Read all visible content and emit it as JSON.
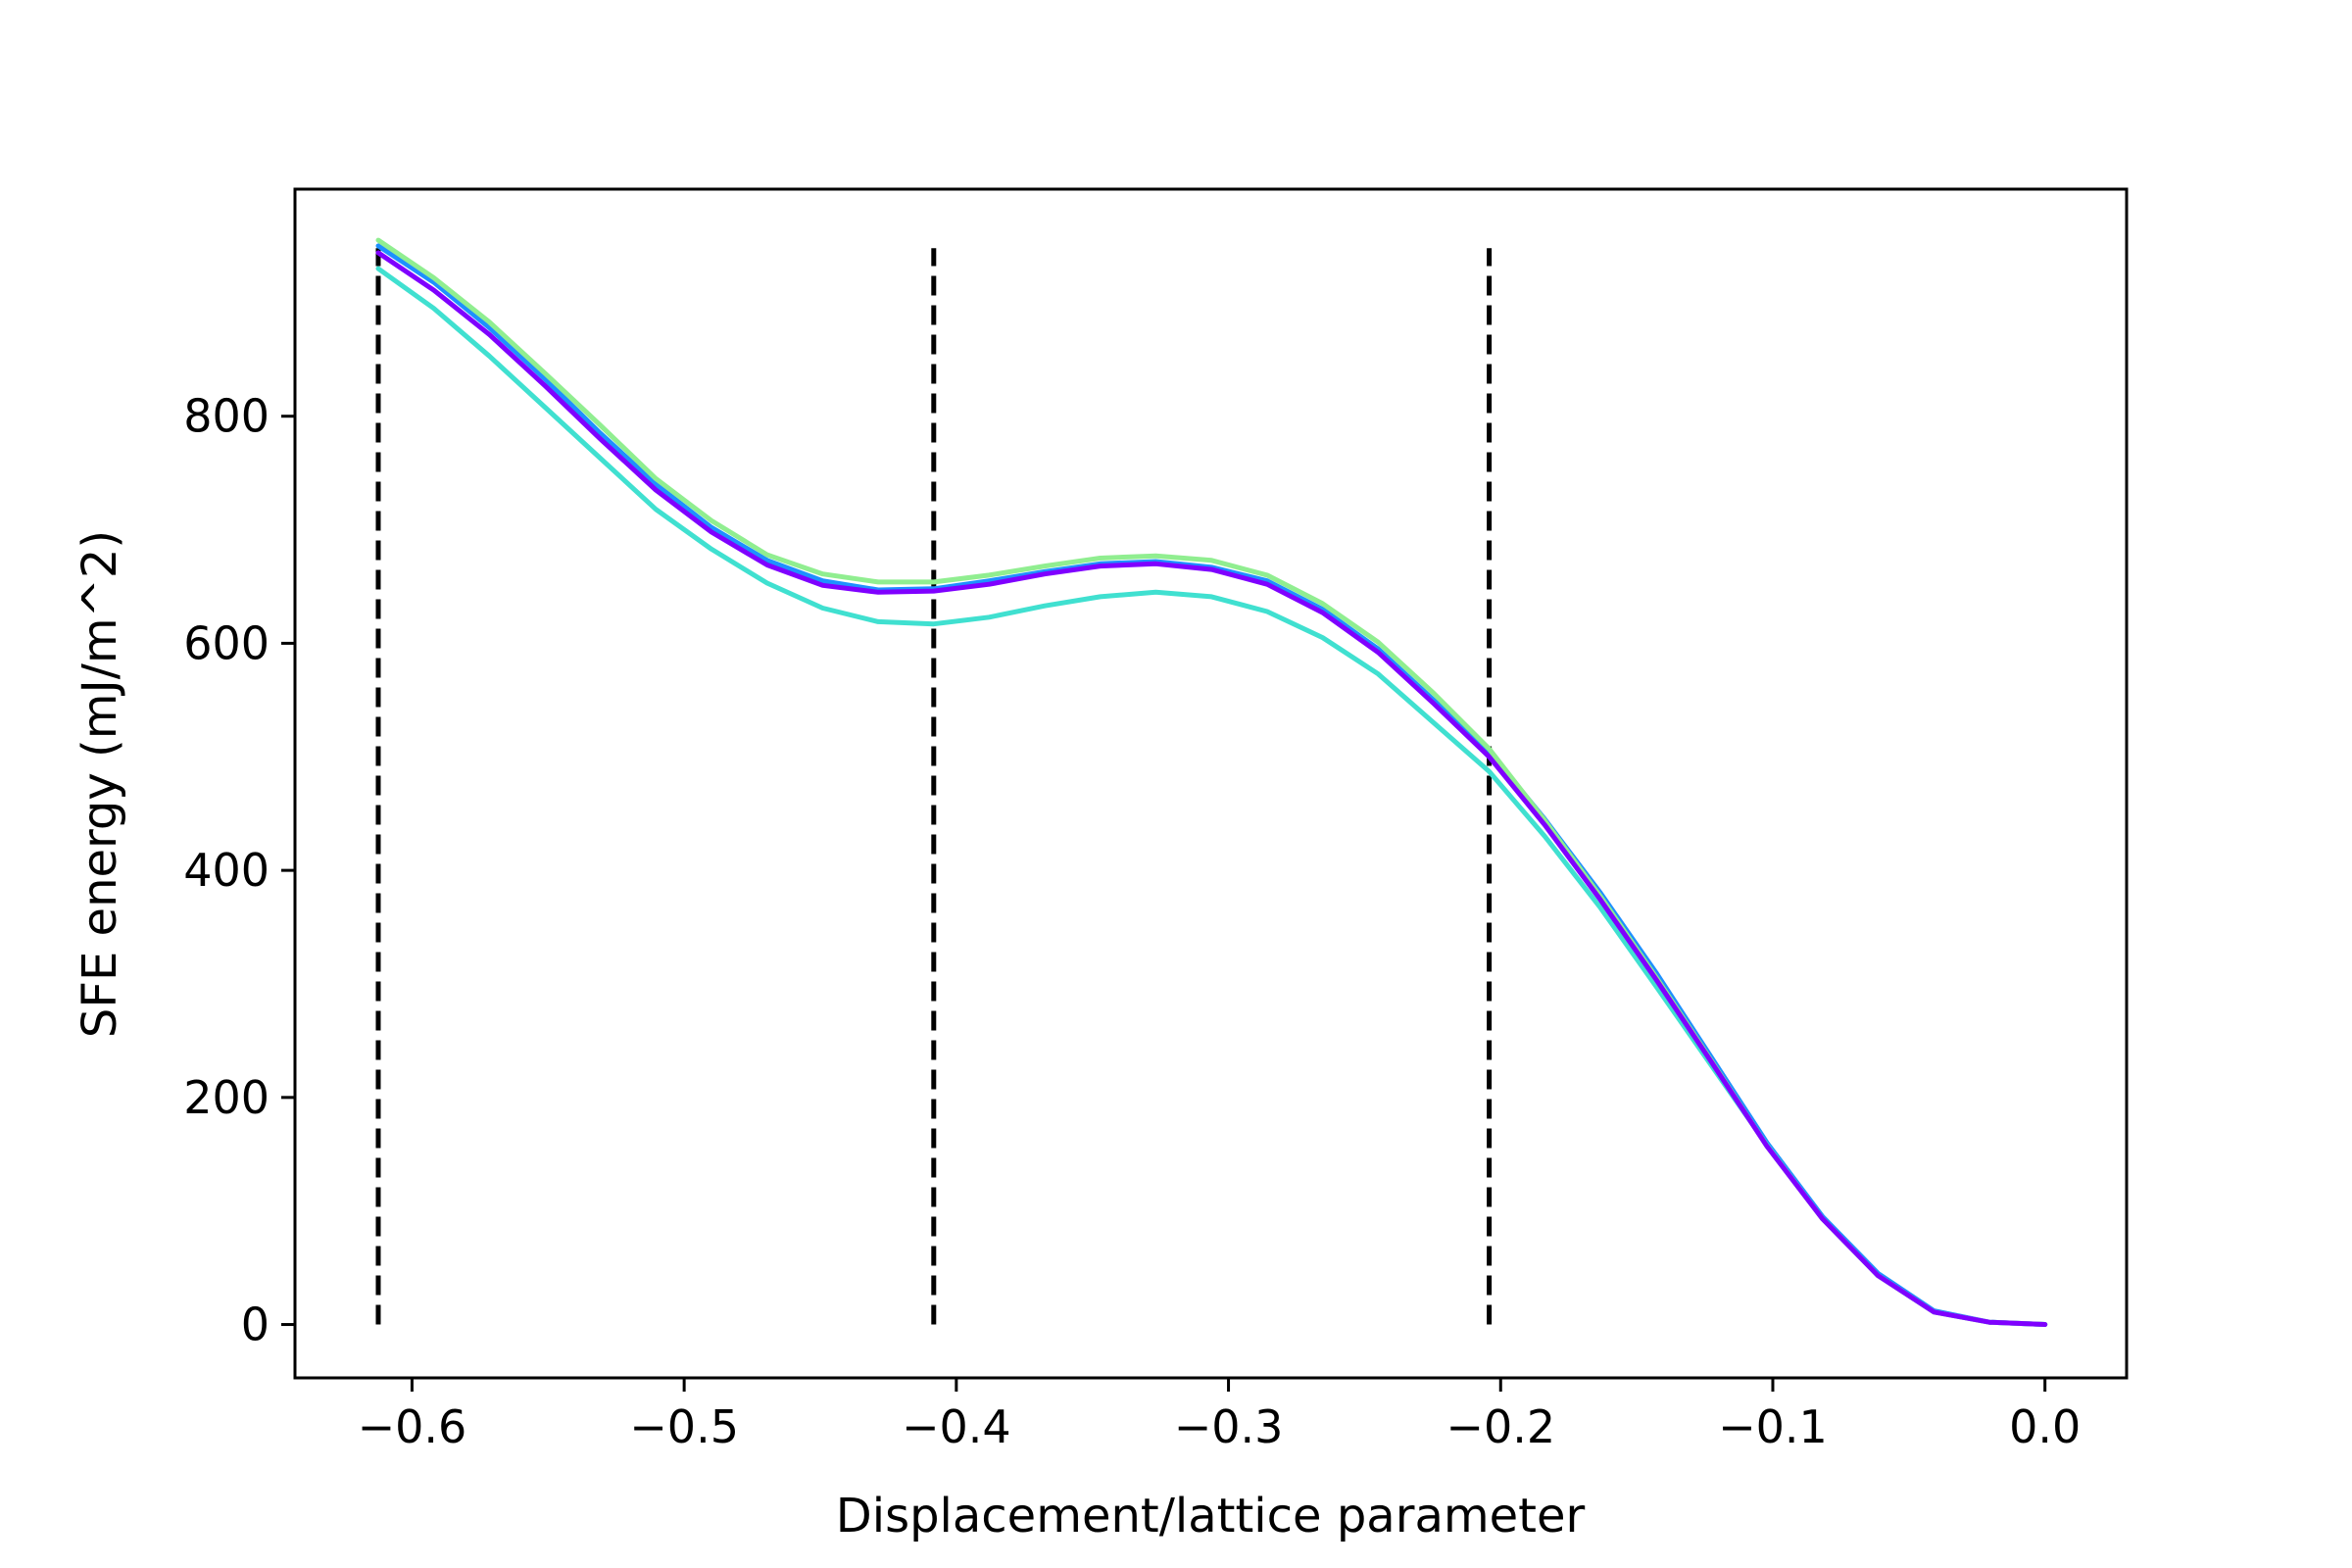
{
  "chart_data": {
    "type": "line",
    "title": "",
    "xlabel": "Displacement/lattice parameter",
    "ylabel": "SFE energy (mJ/m^2)",
    "xlim": [
      -0.643,
      0.03
    ],
    "ylim": [
      -47,
      1000
    ],
    "xticks": [
      -0.6,
      -0.5,
      -0.4,
      -0.3,
      -0.2,
      -0.1,
      0.0
    ],
    "xtick_labels": [
      "−0.6",
      "−0.5",
      "−0.4",
      "−0.3",
      "−0.2",
      "−0.1",
      "0.0"
    ],
    "yticks": [
      0,
      200,
      400,
      600,
      800
    ],
    "ytick_labels": [
      "0",
      "200",
      "400",
      "600",
      "800"
    ],
    "grid": false,
    "legend": "none",
    "x": [
      -0.6124,
      -0.592,
      -0.5716,
      -0.5512,
      -0.5308,
      -0.5104,
      -0.49,
      -0.4695,
      -0.4491,
      -0.4287,
      -0.4083,
      -0.3879,
      -0.3675,
      -0.3471,
      -0.3267,
      -0.3062,
      -0.2858,
      -0.2654,
      -0.245,
      -0.2246,
      -0.2042,
      -0.1838,
      -0.1633,
      -0.1429,
      -0.1225,
      -0.1021,
      -0.0817,
      -0.0613,
      -0.0408,
      -0.0204,
      0.0
    ],
    "series": [
      {
        "color": "#1e90ff",
        "values": [
          950,
          918,
          878,
          833,
          785,
          740,
          702,
          673,
          655,
          647,
          648,
          655,
          663,
          670,
          672,
          667,
          655,
          630,
          595,
          550,
          505,
          445,
          380,
          310,
          235,
          160,
          95,
          45,
          12,
          2,
          0
        ]
      },
      {
        "color": "#40e0d0",
        "values": [
          930,
          895,
          853,
          808,
          763,
          718,
          683,
          653,
          631,
          619,
          617,
          623,
          633,
          641,
          645,
          641,
          628,
          605,
          573,
          530,
          487,
          430,
          367,
          298,
          228,
          158,
          93,
          43,
          11,
          2,
          0
        ]
      },
      {
        "color": "#90ee90",
        "values": [
          955,
          922,
          883,
          838,
          792,
          745,
          708,
          678,
          661,
          654,
          654,
          660,
          668,
          675,
          677,
          673,
          660,
          635,
          601,
          556,
          507,
          444,
          377,
          306,
          232,
          157,
          93,
          43,
          11,
          2,
          0
        ]
      },
      {
        "color": "#7f00ff",
        "values": [
          944,
          911,
          872,
          827,
          780,
          735,
          698,
          669,
          651,
          645,
          646,
          652,
          661,
          668,
          670,
          665,
          652,
          627,
          592,
          547,
          500,
          440,
          374,
          304,
          231,
          157,
          93,
          43,
          11,
          2,
          0
        ]
      }
    ],
    "vlines": {
      "color": "#000000",
      "style": "dashed",
      "x": [
        -0.6124,
        -0.4083,
        -0.2042
      ],
      "y_from": 0,
      "y_to": 948
    }
  }
}
